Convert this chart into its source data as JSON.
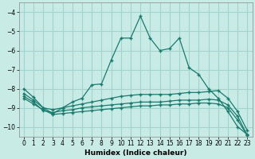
{
  "background_color": "#c8ebe6",
  "grid_color": "#a0d4cc",
  "line_color": "#1a7a6e",
  "xlabel": "Humidex (Indice chaleur)",
  "ylim": [
    -10.5,
    -3.5
  ],
  "xlim": [
    -0.5,
    23.5
  ],
  "yticks": [
    -10,
    -9,
    -8,
    -7,
    -6,
    -5,
    -4
  ],
  "xticks": [
    0,
    1,
    2,
    3,
    4,
    5,
    6,
    7,
    8,
    9,
    10,
    11,
    12,
    13,
    14,
    15,
    16,
    17,
    18,
    19,
    20,
    21,
    22,
    23
  ],
  "lines": [
    {
      "x": [
        0,
        1,
        2,
        3,
        4,
        5,
        6,
        7,
        8,
        9,
        10,
        11,
        12,
        13,
        14,
        15,
        16,
        17,
        18,
        19,
        20,
        21,
        22,
        23
      ],
      "y": [
        -8.0,
        -8.45,
        -9.0,
        -9.3,
        -9.0,
        -8.7,
        -8.5,
        -7.8,
        -7.75,
        -6.5,
        -5.35,
        -5.35,
        -4.2,
        -5.35,
        -6.0,
        -5.9,
        -5.35,
        -6.9,
        -7.25,
        -8.0,
        -8.5,
        -9.2,
        -10.0,
        -10.4
      ]
    },
    {
      "x": [
        0,
        1,
        2,
        3,
        4,
        5,
        6,
        7,
        8,
        9,
        10,
        11,
        12,
        13,
        14,
        15,
        16,
        17,
        18,
        19,
        20,
        21,
        22,
        23
      ],
      "y": [
        -8.25,
        -8.6,
        -9.0,
        -9.1,
        -9.0,
        -8.9,
        -8.8,
        -8.7,
        -8.6,
        -8.5,
        -8.4,
        -8.35,
        -8.3,
        -8.3,
        -8.3,
        -8.3,
        -8.25,
        -8.2,
        -8.2,
        -8.15,
        -8.1,
        -8.5,
        -9.2,
        -10.2
      ]
    },
    {
      "x": [
        0,
        1,
        2,
        3,
        4,
        5,
        6,
        7,
        8,
        9,
        10,
        11,
        12,
        13,
        14,
        15,
        16,
        17,
        18,
        19,
        20,
        21,
        22,
        23
      ],
      "y": [
        -8.4,
        -8.7,
        -9.15,
        -9.25,
        -9.15,
        -9.1,
        -9.0,
        -8.95,
        -8.9,
        -8.85,
        -8.8,
        -8.75,
        -8.7,
        -8.7,
        -8.7,
        -8.65,
        -8.6,
        -8.6,
        -8.6,
        -8.55,
        -8.6,
        -8.85,
        -9.45,
        -10.45
      ]
    },
    {
      "x": [
        0,
        1,
        2,
        3,
        4,
        5,
        6,
        7,
        8,
        9,
        10,
        11,
        12,
        13,
        14,
        15,
        16,
        17,
        18,
        19,
        20,
        21,
        22,
        23
      ],
      "y": [
        -8.5,
        -8.8,
        -9.1,
        -9.35,
        -9.3,
        -9.25,
        -9.2,
        -9.15,
        -9.1,
        -9.05,
        -9.0,
        -8.95,
        -8.9,
        -8.9,
        -8.85,
        -8.85,
        -8.8,
        -8.8,
        -8.75,
        -8.75,
        -8.8,
        -9.0,
        -9.65,
        -10.45
      ]
    }
  ]
}
